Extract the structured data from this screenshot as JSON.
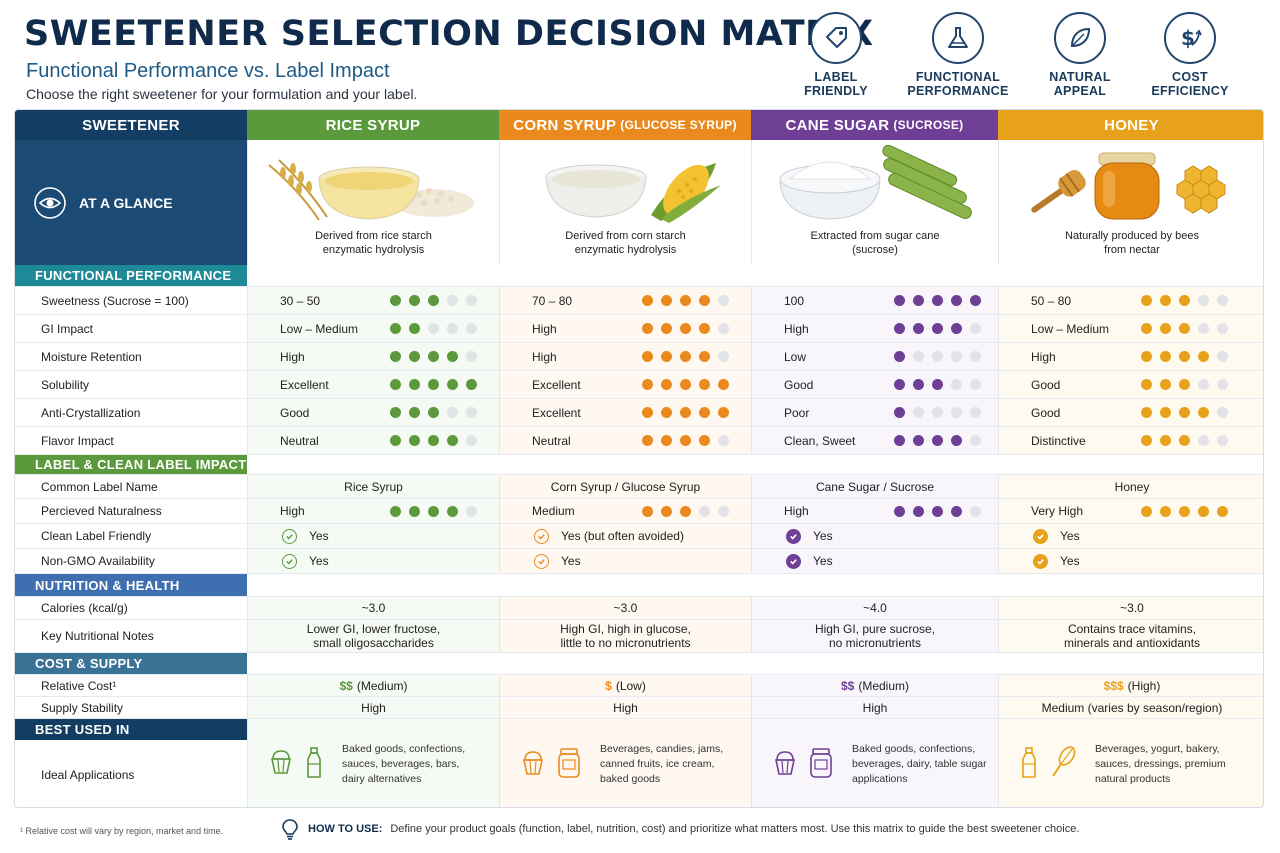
{
  "header": {
    "title": "SWEETENER SELECTION DECISION MATRIX",
    "subtitle": "Functional Performance vs. Label Impact",
    "tagline": "Choose the right sweetener for your formulation and your label."
  },
  "criteria": [
    {
      "label_1": "LABEL",
      "label_2": "FRIENDLY",
      "icon": "tag-icon"
    },
    {
      "label_1": "FUNCTIONAL",
      "label_2": "PERFORMANCE",
      "icon": "flask-icon"
    },
    {
      "label_1": "NATURAL",
      "label_2": "APPEAL",
      "icon": "leaf-icon"
    },
    {
      "label_1": "COST",
      "label_2": "EFFICIENCY",
      "icon": "dollar-growth-icon"
    }
  ],
  "columns": {
    "sweetener_label": "SWEETENER",
    "items": [
      {
        "name": "RICE SYRUP",
        "sub": "",
        "color": "#5b9a3c",
        "light": "#eef5e9"
      },
      {
        "name": "CORN SYRUP",
        "sub": "(GLUCOSE SYRUP)",
        "color": "#ea8a1e",
        "light": "#fdf1e3"
      },
      {
        "name": "CANE SUGAR",
        "sub": "(SUCROSE)",
        "color": "#6e3f94",
        "light": "#f2ecf7"
      },
      {
        "name": "HONEY",
        "sub": "",
        "color": "#e8a11a",
        "light": "#fdf5e2"
      }
    ]
  },
  "glance": {
    "label": "AT A GLANCE",
    "descriptions": [
      {
        "l1": "Derived from rice starch",
        "l2": "enzymatic hydrolysis"
      },
      {
        "l1": "Derived from corn starch",
        "l2": "enzymatic hydrolysis"
      },
      {
        "l1": "Extracted from sugar cane",
        "l2": "(sucrose)"
      },
      {
        "l1": "Naturally produced by bees",
        "l2": "from nectar"
      }
    ]
  },
  "sections": {
    "functional": "FUNCTIONAL PERFORMANCE",
    "label": "LABEL & CLEAN LABEL IMPACT",
    "nutrition": "NUTRITION & HEALTH",
    "cost": "COST & SUPPLY",
    "best": "BEST USED IN"
  },
  "section_colors": {
    "functional": "#1e8a98",
    "label": "#5b9a3c",
    "nutrition": "#3f6fb0",
    "cost": "#3a7296",
    "best": "#143d63"
  },
  "functional_rows": [
    {
      "label": "Sweetness (Sucrose = 100)",
      "values": [
        "30 – 50",
        "70 – 80",
        "100",
        "50 – 80"
      ],
      "ratings": [
        3,
        4,
        5,
        3
      ]
    },
    {
      "label": "GI Impact",
      "values": [
        "Low – Medium",
        "High",
        "High",
        "Low – Medium"
      ],
      "ratings": [
        2,
        4,
        4,
        3
      ]
    },
    {
      "label": "Moisture Retention",
      "values": [
        "High",
        "High",
        "Low",
        "High"
      ],
      "ratings": [
        4,
        4,
        1,
        4
      ]
    },
    {
      "label": "Solubility",
      "values": [
        "Excellent",
        "Excellent",
        "Good",
        "Good"
      ],
      "ratings": [
        5,
        5,
        3,
        3
      ]
    },
    {
      "label": "Anti-Crystallization",
      "values": [
        "Good",
        "Excellent",
        "Poor",
        "Good"
      ],
      "ratings": [
        3,
        5,
        1,
        4
      ]
    },
    {
      "label": "Flavor Impact",
      "values": [
        "Neutral",
        "Neutral",
        "Clean, Sweet",
        "Distinctive"
      ],
      "ratings": [
        4,
        4,
        4,
        3
      ]
    }
  ],
  "label_rows": {
    "common_name": {
      "label": "Common Label Name",
      "values": [
        "Rice Syrup",
        "Corn Syrup / Glucose Syrup",
        "Cane Sugar / Sucrose",
        "Honey"
      ]
    },
    "naturalness": {
      "label": "Percieved Naturalness",
      "values": [
        "High",
        "Medium",
        "High",
        "Very High"
      ],
      "ratings": [
        4,
        3,
        4,
        5
      ]
    },
    "clean_label": {
      "label": "Clean Label Friendly",
      "values": [
        "Yes",
        "Yes (but often avoided)",
        "Yes",
        "Yes"
      ]
    },
    "non_gmo": {
      "label": "Non-GMO Availability",
      "values": [
        "Yes",
        "Yes",
        "Yes",
        "Yes"
      ]
    }
  },
  "nutrition_rows": {
    "calories": {
      "label": "Calories (kcal/g)",
      "values": [
        "~3.0",
        "~3.0",
        "~4.0",
        "~3.0"
      ]
    },
    "notes": {
      "label": "Key Nutritional Notes",
      "values": [
        {
          "l1": "Lower GI, lower fructose,",
          "l2": "small oligosaccharides"
        },
        {
          "l1": "High GI, high in glucose,",
          "l2": "little to no micronutrients"
        },
        {
          "l1": "High GI, pure sucrose,",
          "l2": "no micronutrients"
        },
        {
          "l1": "Contains trace vitamins,",
          "l2": "minerals and antioxidants"
        }
      ]
    }
  },
  "cost_rows": {
    "relative_cost": {
      "label": "Relative Cost¹",
      "values": [
        {
          "sign": "$$",
          "level": "(Medium)"
        },
        {
          "sign": "$",
          "level": "(Low)"
        },
        {
          "sign": "$$",
          "level": "(Medium)"
        },
        {
          "sign": "$$$",
          "level": "(High)"
        }
      ]
    },
    "supply": {
      "label": "Supply Stability",
      "values": [
        "High",
        "High",
        "High",
        "Medium (varies by season/region)"
      ]
    }
  },
  "best_used": {
    "label": "Ideal Applications",
    "items": [
      {
        "l1": "Baked goods, confections,",
        "l2": "sauces, beverages, bars,",
        "l3": "dairy alternatives",
        "icons": [
          "cupcake-icon",
          "bottle-icon"
        ]
      },
      {
        "l1": "Beverages, candies, jams,",
        "l2": "canned fruits, ice cream,",
        "l3": "baked goods",
        "icons": [
          "cupcake-icon",
          "jar-icon"
        ]
      },
      {
        "l1": "Baked goods, confections,",
        "l2": "beverages, dairy, table sugar",
        "l3": "applications",
        "icons": [
          "cupcake-icon",
          "jar-icon"
        ]
      },
      {
        "l1": "Beverages, yogurt, bakery,",
        "l2": "sauces, dressings, premium",
        "l3": "natural products",
        "icons": [
          "bottle-icon",
          "whisk-icon"
        ]
      }
    ]
  },
  "footer": {
    "note": "¹ Relative cost will vary by region, market and time.",
    "howto_label": "HOW TO USE:",
    "howto_text": "Define your product goals (function, label, nutrition, cost) and prioritize what matters most. Use this matrix to guide the best sweetener choice."
  }
}
